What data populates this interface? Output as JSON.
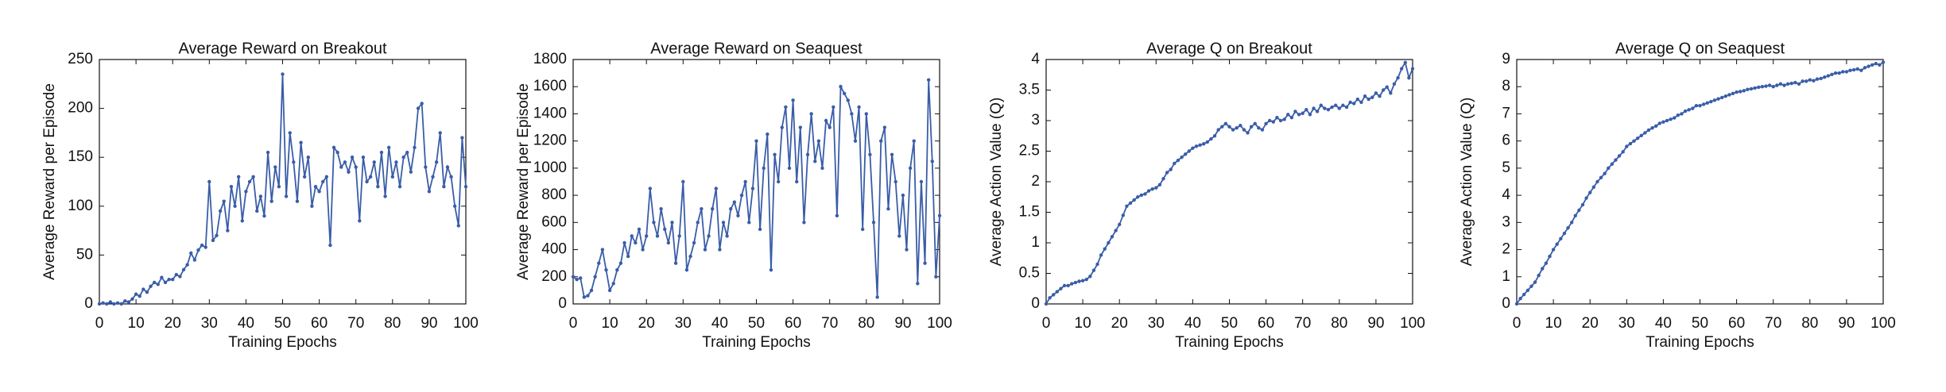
{
  "chart_data": [
    {
      "type": "line",
      "title": "Average Reward on Breakout",
      "x_label": "Training Epochs",
      "y_label": "Average Reward per Episode",
      "xlim": [
        0,
        100
      ],
      "ylim": [
        0,
        250
      ],
      "xticks": [
        0,
        10,
        20,
        30,
        40,
        50,
        60,
        70,
        80,
        90,
        100
      ],
      "yticks": [
        0,
        50,
        100,
        150,
        200,
        250
      ],
      "x": [
        0,
        1,
        2,
        3,
        4,
        5,
        6,
        7,
        8,
        9,
        10,
        11,
        12,
        13,
        14,
        15,
        16,
        17,
        18,
        19,
        20,
        21,
        22,
        23,
        24,
        25,
        26,
        27,
        28,
        29,
        30,
        31,
        32,
        33,
        34,
        35,
        36,
        37,
        38,
        39,
        40,
        41,
        42,
        43,
        44,
        45,
        46,
        47,
        48,
        49,
        50,
        51,
        52,
        53,
        54,
        55,
        56,
        57,
        58,
        59,
        60,
        61,
        62,
        63,
        64,
        65,
        66,
        67,
        68,
        69,
        70,
        71,
        72,
        73,
        74,
        75,
        76,
        77,
        78,
        79,
        80,
        81,
        82,
        83,
        84,
        85,
        86,
        87,
        88,
        89,
        90,
        91,
        92,
        93,
        94,
        95,
        96,
        97,
        98,
        99,
        100
      ],
      "series": [
        {
          "color": "#3a5da8",
          "values": [
            0,
            1,
            0,
            2,
            0,
            1,
            0,
            3,
            2,
            5,
            10,
            8,
            15,
            12,
            18,
            22,
            20,
            27,
            22,
            25,
            25,
            30,
            28,
            35,
            40,
            52,
            45,
            55,
            60,
            58,
            125,
            65,
            70,
            95,
            105,
            75,
            120,
            100,
            130,
            85,
            115,
            125,
            130,
            95,
            110,
            90,
            155,
            105,
            140,
            120,
            235,
            110,
            175,
            145,
            105,
            165,
            130,
            150,
            100,
            120,
            115,
            125,
            130,
            60,
            160,
            155,
            140,
            145,
            135,
            150,
            140,
            85,
            150,
            125,
            130,
            145,
            120,
            155,
            110,
            160,
            130,
            145,
            120,
            150,
            155,
            135,
            160,
            200,
            205,
            140,
            115,
            130,
            145,
            175,
            120,
            140,
            130,
            100,
            80,
            170,
            120
          ]
        }
      ]
    },
    {
      "type": "line",
      "title": "Average Reward on Seaquest",
      "x_label": "Training Epochs",
      "y_label": "Average Reward per Episode",
      "xlim": [
        0,
        100
      ],
      "ylim": [
        0,
        1800
      ],
      "xticks": [
        0,
        10,
        20,
        30,
        40,
        50,
        60,
        70,
        80,
        90,
        100
      ],
      "yticks": [
        0,
        200,
        400,
        600,
        800,
        1000,
        1200,
        1400,
        1600,
        1800
      ],
      "x": [
        0,
        1,
        2,
        3,
        4,
        5,
        6,
        7,
        8,
        9,
        10,
        11,
        12,
        13,
        14,
        15,
        16,
        17,
        18,
        19,
        20,
        21,
        22,
        23,
        24,
        25,
        26,
        27,
        28,
        29,
        30,
        31,
        32,
        33,
        34,
        35,
        36,
        37,
        38,
        39,
        40,
        41,
        42,
        43,
        44,
        45,
        46,
        47,
        48,
        49,
        50,
        51,
        52,
        53,
        54,
        55,
        56,
        57,
        58,
        59,
        60,
        61,
        62,
        63,
        64,
        65,
        66,
        67,
        68,
        69,
        70,
        71,
        72,
        73,
        74,
        75,
        76,
        77,
        78,
        79,
        80,
        81,
        82,
        83,
        84,
        85,
        86,
        87,
        88,
        89,
        90,
        91,
        92,
        93,
        94,
        95,
        96,
        97,
        98,
        99,
        100
      ],
      "series": [
        {
          "color": "#3a5da8",
          "values": [
            200,
            180,
            190,
            50,
            60,
            100,
            200,
            300,
            400,
            250,
            100,
            150,
            250,
            300,
            450,
            350,
            500,
            450,
            550,
            400,
            500,
            850,
            600,
            500,
            700,
            550,
            450,
            600,
            300,
            500,
            900,
            250,
            350,
            450,
            600,
            700,
            400,
            500,
            700,
            850,
            400,
            600,
            500,
            700,
            750,
            650,
            800,
            900,
            600,
            850,
            1200,
            550,
            1000,
            1250,
            250,
            1100,
            900,
            1300,
            1450,
            1000,
            1500,
            900,
            1300,
            600,
            1100,
            1400,
            1050,
            1200,
            1000,
            1350,
            1300,
            1450,
            650,
            1600,
            1550,
            1500,
            1400,
            1200,
            1450,
            550,
            1400,
            1100,
            600,
            50,
            1200,
            1300,
            700,
            1100,
            900,
            500,
            800,
            400,
            1000,
            1200,
            150,
            900,
            300,
            1650,
            1050,
            200,
            650
          ]
        }
      ]
    },
    {
      "type": "line",
      "title": "Average Q on Breakout",
      "x_label": "Training Epochs",
      "y_label": "Average Action Value (Q)",
      "xlim": [
        0,
        100
      ],
      "ylim": [
        0,
        4
      ],
      "xticks": [
        0,
        10,
        20,
        30,
        40,
        50,
        60,
        70,
        80,
        90,
        100
      ],
      "yticks": [
        0,
        0.5,
        1,
        1.5,
        2,
        2.5,
        3,
        3.5,
        4
      ],
      "x": [
        0,
        1,
        2,
        3,
        4,
        5,
        6,
        7,
        8,
        9,
        10,
        11,
        12,
        13,
        14,
        15,
        16,
        17,
        18,
        19,
        20,
        21,
        22,
        23,
        24,
        25,
        26,
        27,
        28,
        29,
        30,
        31,
        32,
        33,
        34,
        35,
        36,
        37,
        38,
        39,
        40,
        41,
        42,
        43,
        44,
        45,
        46,
        47,
        48,
        49,
        50,
        51,
        52,
        53,
        54,
        55,
        56,
        57,
        58,
        59,
        60,
        61,
        62,
        63,
        64,
        65,
        66,
        67,
        68,
        69,
        70,
        71,
        72,
        73,
        74,
        75,
        76,
        77,
        78,
        79,
        80,
        81,
        82,
        83,
        84,
        85,
        86,
        87,
        88,
        89,
        90,
        91,
        92,
        93,
        94,
        95,
        96,
        97,
        98,
        99,
        100
      ],
      "series": [
        {
          "color": "#3a5da8",
          "values": [
            0,
            0.1,
            0.15,
            0.2,
            0.25,
            0.3,
            0.3,
            0.33,
            0.35,
            0.37,
            0.38,
            0.4,
            0.45,
            0.55,
            0.65,
            0.8,
            0.9,
            1.0,
            1.1,
            1.2,
            1.3,
            1.45,
            1.6,
            1.65,
            1.7,
            1.75,
            1.78,
            1.8,
            1.85,
            1.88,
            1.9,
            1.95,
            2.05,
            2.15,
            2.2,
            2.3,
            2.35,
            2.4,
            2.45,
            2.5,
            2.55,
            2.58,
            2.6,
            2.62,
            2.65,
            2.7,
            2.75,
            2.85,
            2.9,
            2.95,
            2.9,
            2.85,
            2.88,
            2.92,
            2.85,
            2.8,
            2.9,
            2.95,
            2.88,
            2.85,
            2.95,
            3.0,
            2.98,
            3.05,
            3.0,
            3.02,
            3.1,
            3.05,
            3.15,
            3.1,
            3.12,
            3.18,
            3.1,
            3.2,
            3.15,
            3.25,
            3.2,
            3.18,
            3.22,
            3.25,
            3.2,
            3.25,
            3.22,
            3.3,
            3.28,
            3.35,
            3.3,
            3.4,
            3.35,
            3.38,
            3.45,
            3.4,
            3.5,
            3.55,
            3.45,
            3.6,
            3.7,
            3.85,
            3.95,
            3.7,
            3.85
          ]
        }
      ]
    },
    {
      "type": "line",
      "title": "Average Q on Seaquest",
      "x_label": "Training Epochs",
      "y_label": "Average Action Value (Q)",
      "xlim": [
        0,
        100
      ],
      "ylim": [
        0,
        9
      ],
      "xticks": [
        0,
        10,
        20,
        30,
        40,
        50,
        60,
        70,
        80,
        90,
        100
      ],
      "yticks": [
        0,
        1,
        2,
        3,
        4,
        5,
        6,
        7,
        8,
        9
      ],
      "x": [
        0,
        1,
        2,
        3,
        4,
        5,
        6,
        7,
        8,
        9,
        10,
        11,
        12,
        13,
        14,
        15,
        16,
        17,
        18,
        19,
        20,
        21,
        22,
        23,
        24,
        25,
        26,
        27,
        28,
        29,
        30,
        31,
        32,
        33,
        34,
        35,
        36,
        37,
        38,
        39,
        40,
        41,
        42,
        43,
        44,
        45,
        46,
        47,
        48,
        49,
        50,
        51,
        52,
        53,
        54,
        55,
        56,
        57,
        58,
        59,
        60,
        61,
        62,
        63,
        64,
        65,
        66,
        67,
        68,
        69,
        70,
        71,
        72,
        73,
        74,
        75,
        76,
        77,
        78,
        79,
        80,
        81,
        82,
        83,
        84,
        85,
        86,
        87,
        88,
        89,
        90,
        91,
        92,
        93,
        94,
        95,
        96,
        97,
        98,
        99,
        100
      ],
      "series": [
        {
          "color": "#3a5da8",
          "values": [
            0,
            0.2,
            0.35,
            0.5,
            0.65,
            0.8,
            1.05,
            1.3,
            1.5,
            1.75,
            2.0,
            2.2,
            2.4,
            2.6,
            2.8,
            3.0,
            3.25,
            3.45,
            3.65,
            3.9,
            4.1,
            4.3,
            4.5,
            4.65,
            4.8,
            5.0,
            5.15,
            5.3,
            5.45,
            5.6,
            5.8,
            5.9,
            6.0,
            6.1,
            6.2,
            6.3,
            6.4,
            6.48,
            6.55,
            6.65,
            6.7,
            6.75,
            6.8,
            6.85,
            6.95,
            7.0,
            7.1,
            7.15,
            7.2,
            7.3,
            7.3,
            7.35,
            7.4,
            7.45,
            7.5,
            7.55,
            7.6,
            7.65,
            7.7,
            7.75,
            7.8,
            7.82,
            7.85,
            7.9,
            7.92,
            7.95,
            7.98,
            8.0,
            8.02,
            8.05,
            8.0,
            8.05,
            8.1,
            8.05,
            8.1,
            8.12,
            8.15,
            8.1,
            8.2,
            8.2,
            8.25,
            8.22,
            8.28,
            8.3,
            8.35,
            8.4,
            8.45,
            8.5,
            8.5,
            8.55,
            8.55,
            8.6,
            8.62,
            8.65,
            8.6,
            8.7,
            8.75,
            8.8,
            8.85,
            8.8,
            8.9
          ]
        }
      ]
    }
  ]
}
